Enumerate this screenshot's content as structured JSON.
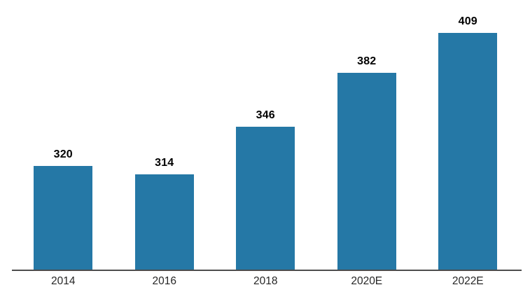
{
  "chart_data": {
    "type": "bar",
    "categories": [
      "2014",
      "2016",
      "2018",
      "2020E",
      "2022E"
    ],
    "values": [
      320,
      314,
      346,
      382,
      409
    ],
    "title": "",
    "xlabel": "",
    "ylabel": "",
    "ylim": [
      250,
      430
    ],
    "grid": false,
    "legend": false,
    "value_labels_shown": true,
    "colors": {
      "bar": "#2578A6",
      "axis_line": "#4D4D4D",
      "value_label": "#000000",
      "category_label": "#262626",
      "background": "#FFFFFF"
    }
  }
}
